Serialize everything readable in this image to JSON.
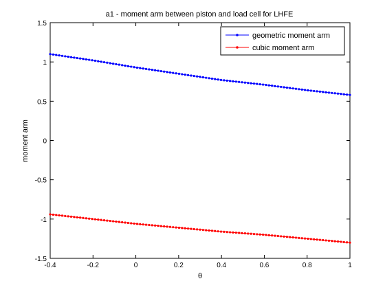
{
  "chart_data": {
    "type": "line",
    "title": "a1 - moment arm between piston and load cell for LHFE",
    "xlabel": "θ",
    "ylabel": "moment arm",
    "xlim": [
      -0.4,
      1
    ],
    "ylim": [
      -1.5,
      1.5
    ],
    "xticks": [
      "-0.4",
      "-0.2",
      "0",
      "0.2",
      "0.4",
      "0.6",
      "0.8",
      "1"
    ],
    "yticks": [
      "1.5",
      "1",
      "0.5",
      "0",
      "-0.5",
      "-1",
      "-1.5"
    ],
    "grid": false,
    "legend_position": "top-right",
    "series": [
      {
        "name": "geometric moment arm",
        "color": "#0000ff",
        "marker": "dot",
        "x": [
          -0.4,
          -0.2,
          0,
          0.2,
          0.4,
          0.6,
          0.8,
          1.0
        ],
        "y": [
          1.1,
          1.02,
          0.93,
          0.85,
          0.77,
          0.71,
          0.64,
          0.58
        ]
      },
      {
        "name": "cubic moment arm",
        "color": "#ff0000",
        "marker": "dot",
        "x": [
          -0.4,
          -0.2,
          0,
          0.2,
          0.4,
          0.6,
          0.8,
          1.0
        ],
        "y": [
          -0.94,
          -1.0,
          -1.06,
          -1.11,
          -1.16,
          -1.2,
          -1.25,
          -1.3
        ]
      }
    ]
  }
}
